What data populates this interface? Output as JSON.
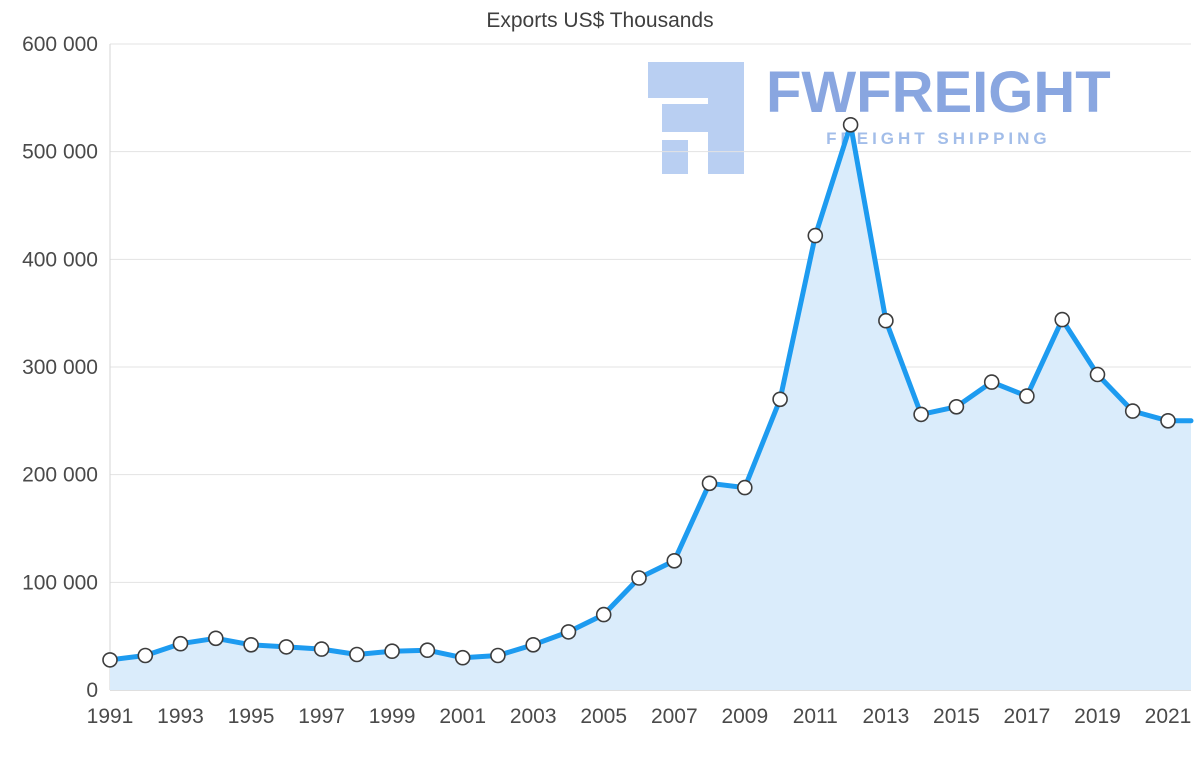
{
  "watermark": {
    "brand": "FWFREIGHT",
    "tagline": "FREIGHT SHIPPING",
    "logo_color": "#b9cff2"
  },
  "chart_data": {
    "type": "area",
    "title": "Exports US$ Thousands",
    "x": [
      1991,
      1992,
      1993,
      1994,
      1995,
      1996,
      1997,
      1998,
      1999,
      2000,
      2001,
      2002,
      2003,
      2004,
      2005,
      2006,
      2007,
      2008,
      2009,
      2010,
      2011,
      2012,
      2013,
      2014,
      2015,
      2016,
      2017,
      2018,
      2019,
      2020,
      2021
    ],
    "values": [
      28000,
      32000,
      43000,
      48000,
      42000,
      40000,
      38000,
      33000,
      36000,
      37000,
      30000,
      32000,
      42000,
      54000,
      70000,
      104000,
      120000,
      192000,
      188000,
      270000,
      422000,
      525000,
      343000,
      256000,
      263000,
      286000,
      273000,
      344000,
      293000,
      259000,
      250000
    ],
    "ylim": [
      0,
      600000
    ],
    "ytick_step": 100000,
    "ytick_labels": [
      "0",
      "100 000",
      "200 000",
      "300 000",
      "400 000",
      "500 000",
      "600 000"
    ],
    "xtick_years": [
      1991,
      1993,
      1995,
      1997,
      1999,
      2001,
      2003,
      2005,
      2007,
      2009,
      2011,
      2013,
      2015,
      2017,
      2019,
      2021
    ],
    "grid": true,
    "legend": "none",
    "xlabel": "",
    "ylabel": "",
    "line_color": "#1d9bf0",
    "fill_color": "#daecfb",
    "marker_fill": "#ffffff",
    "marker_stroke": "#3d3d3d",
    "grid_color": "#e3e3e3"
  }
}
